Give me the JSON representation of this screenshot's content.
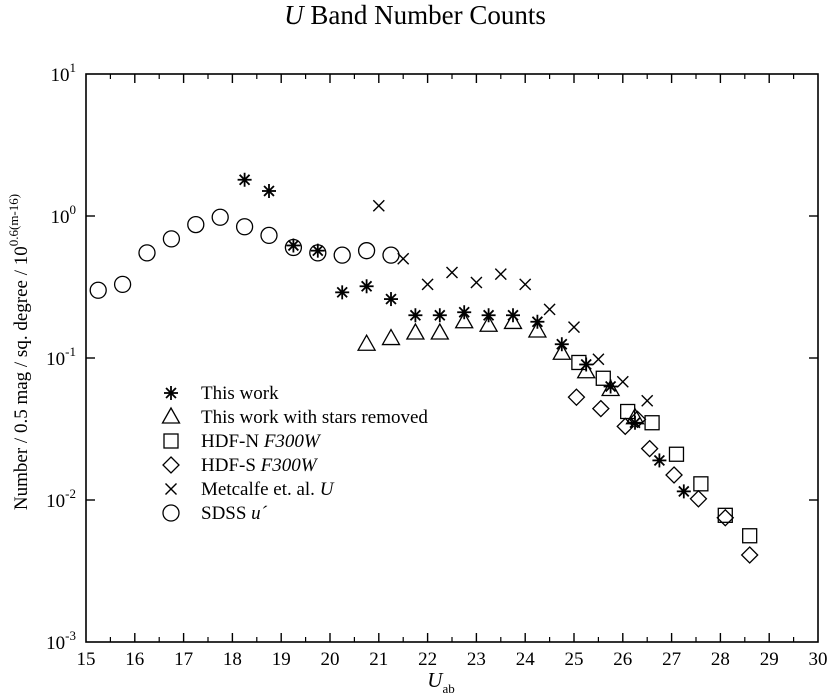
{
  "chart_data": {
    "type": "scatter",
    "title_var": "U",
    "title_rest": " Band Number Counts",
    "ylabel": "Number  / 0.5 mag / sq. degree / 10",
    "ylabel_exp": "0.6(m-16)",
    "xlabel_var": "U",
    "xlabel_sub": "ab",
    "xlim": [
      15,
      30
    ],
    "ylim": [
      0.001,
      10
    ],
    "yscale": "log",
    "x_ticks": [
      "15",
      "16",
      "17",
      "18",
      "19",
      "20",
      "21",
      "22",
      "23",
      "24",
      "25",
      "26",
      "27",
      "28",
      "29",
      "30"
    ],
    "y_ticks": [
      {
        "base": "10",
        "exp": "-3"
      },
      {
        "base": "10",
        "exp": "-2"
      },
      {
        "base": "10",
        "exp": "-1"
      },
      {
        "base": "10",
        "exp": "0"
      },
      {
        "base": "10",
        "exp": "1"
      }
    ],
    "legend_position": "lower-left",
    "series": [
      {
        "name": "This work",
        "name_italic": "",
        "marker": "asterisk",
        "points": [
          [
            18.25,
            1.8
          ],
          [
            18.75,
            1.5
          ],
          [
            19.25,
            0.62
          ],
          [
            19.75,
            0.57
          ],
          [
            20.25,
            0.29
          ],
          [
            20.75,
            0.32
          ],
          [
            21.25,
            0.26
          ],
          [
            21.75,
            0.2
          ],
          [
            22.25,
            0.2
          ],
          [
            22.75,
            0.21
          ],
          [
            23.25,
            0.2
          ],
          [
            23.75,
            0.2
          ],
          [
            24.25,
            0.18
          ],
          [
            24.75,
            0.125
          ],
          [
            25.25,
            0.09
          ],
          [
            25.75,
            0.063
          ],
          [
            26.25,
            0.035
          ],
          [
            26.75,
            0.019
          ],
          [
            27.25,
            0.0115
          ]
        ]
      },
      {
        "name": "This work with stars removed",
        "name_italic": "",
        "marker": "triangle",
        "points": [
          [
            20.75,
            0.125
          ],
          [
            21.25,
            0.137
          ],
          [
            21.75,
            0.15
          ],
          [
            22.25,
            0.15
          ],
          [
            22.75,
            0.18
          ],
          [
            23.25,
            0.17
          ],
          [
            23.75,
            0.178
          ],
          [
            24.25,
            0.155
          ],
          [
            24.75,
            0.108
          ],
          [
            25.25,
            0.08
          ],
          [
            25.75,
            0.06
          ],
          [
            26.25,
            0.038
          ]
        ]
      },
      {
        "name": "HDF-N ",
        "name_italic": "F300W",
        "marker": "square",
        "points": [
          [
            25.1,
            0.093
          ],
          [
            25.6,
            0.072
          ],
          [
            26.1,
            0.042
          ],
          [
            26.6,
            0.035
          ],
          [
            27.1,
            0.021
          ],
          [
            27.6,
            0.013
          ],
          [
            28.1,
            0.0078
          ],
          [
            28.6,
            0.0056
          ]
        ]
      },
      {
        "name": "HDF-S ",
        "name_italic": "F300W",
        "marker": "diamond",
        "points": [
          [
            25.05,
            0.053
          ],
          [
            25.55,
            0.044
          ],
          [
            26.05,
            0.033
          ],
          [
            26.3,
            0.037
          ],
          [
            26.55,
            0.023
          ],
          [
            27.05,
            0.015
          ],
          [
            27.55,
            0.0102
          ],
          [
            28.1,
            0.0075
          ],
          [
            28.6,
            0.0041
          ]
        ]
      },
      {
        "name": "Metcalfe et. al. ",
        "name_italic": "U",
        "marker": "x",
        "points": [
          [
            21.0,
            1.18
          ],
          [
            21.5,
            0.5
          ],
          [
            22.0,
            0.33
          ],
          [
            22.5,
            0.4
          ],
          [
            23.0,
            0.34
          ],
          [
            23.5,
            0.39
          ],
          [
            24.0,
            0.33
          ],
          [
            24.5,
            0.22
          ],
          [
            25.0,
            0.165
          ],
          [
            25.5,
            0.098
          ],
          [
            26.0,
            0.068
          ],
          [
            26.5,
            0.05
          ]
        ]
      },
      {
        "name": "SDSS ",
        "name_italic": "u´",
        "marker": "circle",
        "points": [
          [
            15.25,
            0.3
          ],
          [
            15.75,
            0.33
          ],
          [
            16.25,
            0.55
          ],
          [
            16.75,
            0.69
          ],
          [
            17.25,
            0.87
          ],
          [
            17.75,
            0.98
          ],
          [
            18.25,
            0.84
          ],
          [
            18.75,
            0.73
          ],
          [
            19.25,
            0.6
          ],
          [
            19.75,
            0.55
          ],
          [
            20.25,
            0.53
          ],
          [
            20.75,
            0.57
          ],
          [
            21.25,
            0.53
          ]
        ]
      }
    ]
  }
}
